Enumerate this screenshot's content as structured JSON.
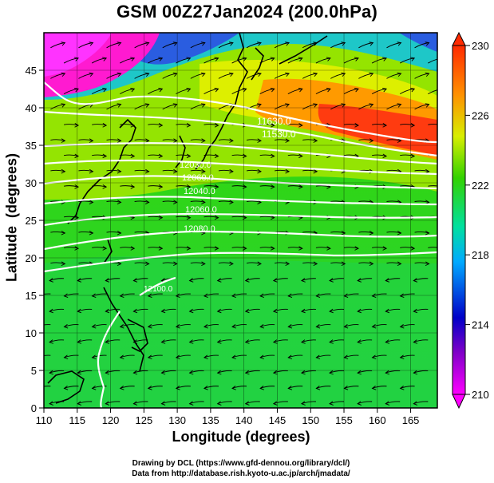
{
  "title": "GSM 00Z27Jan2024 (200.0hPa)",
  "x_axis": {
    "label": "Longitude (degrees)",
    "range": [
      110,
      169
    ],
    "ticks": [
      110,
      115,
      120,
      125,
      130,
      135,
      140,
      145,
      150,
      155,
      160,
      165
    ]
  },
  "y_axis": {
    "label": "Latitude  (degrees)",
    "range": [
      0,
      50
    ],
    "ticks": [
      0,
      5,
      10,
      15,
      20,
      25,
      30,
      35,
      40,
      45
    ]
  },
  "colorbar": {
    "range": [
      210,
      230
    ],
    "ticks": [
      210,
      214,
      218,
      222,
      226,
      230
    ],
    "colors": [
      "#ff00ff",
      "#0000c8",
      "#00c8ff",
      "#00e07a",
      "#32d200",
      "#e6f000",
      "#ff8c00",
      "#ff2a00"
    ]
  },
  "contour_labels": [
    "11630.0",
    "11530.0",
    "12030.0",
    "12060.0",
    "12040.0",
    "12060.0",
    "12080.0",
    "12100.0"
  ],
  "credit": {
    "line1": "Drawing by DCL (https://www.gfd-dennou.org/library/dcl/)",
    "line2": "Data from http://database.rish.kyoto-u.ac.jp/arch/jmadata/"
  }
}
